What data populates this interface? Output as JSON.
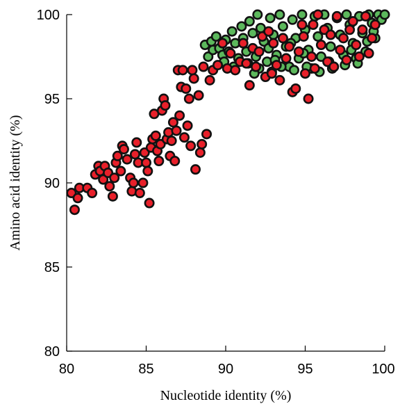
{
  "chart_data": {
    "type": "scatter",
    "title": "",
    "xlabel": "Nucleotide identity (%)",
    "ylabel": "Amino acid identity (%)",
    "xlim": [
      80,
      100
    ],
    "ylim": [
      80,
      100
    ],
    "x_ticks": [
      "80",
      "85",
      "90",
      "95",
      "100"
    ],
    "y_ticks": [
      "80",
      "85",
      "90",
      "95",
      "100"
    ],
    "grid": false,
    "legend": "none",
    "colors": {
      "green": "#5cb85c",
      "red": "#e8202a",
      "outline": "#111111"
    },
    "series": [
      {
        "color": "green",
        "points": [
          [
            88.7,
            98.2
          ],
          [
            88.9,
            97.5
          ],
          [
            89.1,
            98.4
          ],
          [
            89.2,
            97.9
          ],
          [
            89.4,
            98.7
          ],
          [
            89.6,
            98.0
          ],
          [
            89.8,
            97.6
          ],
          [
            90.0,
            98.5
          ],
          [
            90.2,
            97.8
          ],
          [
            90.4,
            99.0
          ],
          [
            90.6,
            98.3
          ],
          [
            90.8,
            97.4
          ],
          [
            91.0,
            99.3
          ],
          [
            91.1,
            98.6
          ],
          [
            91.3,
            97.8
          ],
          [
            91.5,
            99.6
          ],
          [
            91.7,
            98.9
          ],
          [
            91.9,
            97.5
          ],
          [
            92.0,
            100.0
          ],
          [
            92.2,
            99.2
          ],
          [
            92.4,
            98.4
          ],
          [
            92.6,
            97.2
          ],
          [
            92.8,
            99.8
          ],
          [
            93.0,
            98.8
          ],
          [
            93.2,
            97.6
          ],
          [
            93.4,
            100.0
          ],
          [
            93.6,
            99.3
          ],
          [
            93.8,
            98.1
          ],
          [
            94.0,
            96.9
          ],
          [
            94.2,
            99.7
          ],
          [
            94.4,
            98.6
          ],
          [
            94.6,
            97.4
          ],
          [
            94.8,
            100.0
          ],
          [
            95.0,
            99.1
          ],
          [
            95.2,
            97.9
          ],
          [
            95.4,
            96.8
          ],
          [
            95.6,
            99.9
          ],
          [
            95.8,
            98.7
          ],
          [
            96.0,
            97.5
          ],
          [
            96.2,
            100.0
          ],
          [
            96.4,
            99.2
          ],
          [
            96.6,
            98.1
          ],
          [
            96.8,
            96.9
          ],
          [
            97.0,
            99.8
          ],
          [
            97.2,
            98.8
          ],
          [
            97.4,
            97.6
          ],
          [
            97.6,
            100.0
          ],
          [
            97.8,
            99.4
          ],
          [
            98.0,
            98.3
          ],
          [
            98.2,
            97.4
          ],
          [
            98.4,
            99.9
          ],
          [
            98.6,
            98.9
          ],
          [
            98.8,
            97.8
          ],
          [
            99.0,
            100.0
          ],
          [
            99.2,
            99.5
          ],
          [
            99.4,
            98.6
          ],
          [
            99.6,
            100.0
          ],
          [
            99.8,
            99.7
          ],
          [
            100.0,
            100.0
          ],
          [
            91.4,
            97.1
          ],
          [
            92.1,
            96.8
          ],
          [
            92.9,
            96.6
          ],
          [
            93.5,
            96.9
          ],
          [
            94.3,
            96.7
          ],
          [
            95.1,
            96.9
          ],
          [
            95.9,
            96.6
          ],
          [
            96.7,
            96.8
          ],
          [
            97.5,
            97.0
          ],
          [
            98.3,
            97.1
          ],
          [
            90.5,
            96.9
          ],
          [
            89.9,
            97.2
          ],
          [
            91.8,
            96.5
          ],
          [
            93.1,
            97.3
          ],
          [
            94.9,
            97.7
          ],
          [
            96.5,
            97.2
          ],
          [
            97.9,
            97.9
          ],
          [
            98.9,
            98.4
          ],
          [
            99.3,
            99.0
          ],
          [
            92.7,
            98.0
          ],
          [
            94.1,
            98.3
          ]
        ]
      },
      {
        "color": "red",
        "points": [
          [
            80.3,
            89.4
          ],
          [
            80.5,
            88.4
          ],
          [
            80.7,
            89.1
          ],
          [
            80.8,
            89.7
          ],
          [
            81.3,
            89.7
          ],
          [
            81.6,
            89.4
          ],
          [
            81.8,
            90.5
          ],
          [
            82.0,
            91.0
          ],
          [
            82.1,
            90.7
          ],
          [
            82.3,
            90.2
          ],
          [
            82.4,
            91.0
          ],
          [
            82.6,
            90.6
          ],
          [
            82.7,
            89.8
          ],
          [
            82.9,
            89.2
          ],
          [
            83.0,
            90.3
          ],
          [
            83.1,
            91.2
          ],
          [
            83.2,
            91.6
          ],
          [
            83.4,
            90.7
          ],
          [
            83.5,
            92.2
          ],
          [
            83.6,
            92.0
          ],
          [
            83.8,
            91.4
          ],
          [
            84.0,
            90.3
          ],
          [
            84.1,
            89.5
          ],
          [
            84.2,
            90.0
          ],
          [
            84.3,
            91.7
          ],
          [
            84.4,
            92.4
          ],
          [
            84.5,
            91.2
          ],
          [
            84.6,
            89.4
          ],
          [
            84.8,
            90.0
          ],
          [
            84.9,
            91.8
          ],
          [
            85.0,
            91.2
          ],
          [
            85.1,
            90.7
          ],
          [
            85.2,
            88.8
          ],
          [
            85.3,
            92.1
          ],
          [
            85.4,
            92.6
          ],
          [
            85.5,
            94.1
          ],
          [
            85.6,
            92.8
          ],
          [
            85.7,
            91.9
          ],
          [
            85.8,
            91.3
          ],
          [
            85.9,
            92.3
          ],
          [
            86.0,
            94.3
          ],
          [
            86.1,
            95.0
          ],
          [
            86.2,
            94.6
          ],
          [
            86.3,
            92.6
          ],
          [
            86.4,
            93.0
          ],
          [
            86.5,
            91.6
          ],
          [
            86.6,
            92.5
          ],
          [
            86.7,
            93.6
          ],
          [
            86.8,
            91.3
          ],
          [
            86.9,
            93.1
          ],
          [
            87.0,
            96.7
          ],
          [
            87.1,
            94.0
          ],
          [
            87.2,
            95.7
          ],
          [
            87.3,
            96.7
          ],
          [
            87.4,
            92.7
          ],
          [
            87.5,
            95.6
          ],
          [
            87.6,
            93.4
          ],
          [
            87.7,
            95.0
          ],
          [
            87.8,
            92.2
          ],
          [
            87.9,
            96.7
          ],
          [
            88.0,
            96.2
          ],
          [
            88.1,
            90.8
          ],
          [
            88.3,
            95.2
          ],
          [
            88.4,
            91.8
          ],
          [
            88.5,
            92.3
          ],
          [
            88.6,
            96.9
          ],
          [
            88.8,
            92.9
          ],
          [
            89.0,
            96.1
          ],
          [
            89.2,
            96.7
          ],
          [
            89.5,
            97.0
          ],
          [
            89.8,
            98.3
          ],
          [
            90.1,
            96.8
          ],
          [
            90.3,
            97.7
          ],
          [
            90.6,
            96.7
          ],
          [
            90.9,
            97.2
          ],
          [
            91.1,
            98.3
          ],
          [
            91.3,
            97.1
          ],
          [
            91.5,
            95.8
          ],
          [
            91.7,
            98.0
          ],
          [
            91.9,
            96.9
          ],
          [
            92.1,
            97.8
          ],
          [
            92.3,
            98.7
          ],
          [
            92.5,
            96.3
          ],
          [
            92.7,
            99.0
          ],
          [
            92.9,
            96.5
          ],
          [
            93.0,
            98.3
          ],
          [
            93.2,
            97.0
          ],
          [
            93.4,
            96.1
          ],
          [
            93.6,
            98.6
          ],
          [
            93.8,
            97.4
          ],
          [
            94.0,
            98.1
          ],
          [
            94.2,
            95.4
          ],
          [
            94.4,
            95.6
          ],
          [
            94.6,
            97.8
          ],
          [
            94.8,
            99.4
          ],
          [
            95.0,
            96.5
          ],
          [
            95.2,
            95.0
          ],
          [
            95.4,
            97.5
          ],
          [
            95.6,
            96.8
          ],
          [
            95.8,
            100.0
          ],
          [
            96.0,
            98.2
          ],
          [
            96.2,
            99.1
          ],
          [
            96.4,
            97.2
          ],
          [
            96.6,
            98.8
          ],
          [
            96.8,
            96.9
          ],
          [
            97.0,
            99.9
          ],
          [
            97.2,
            97.9
          ],
          [
            97.4,
            98.6
          ],
          [
            97.6,
            97.3
          ],
          [
            97.8,
            99.1
          ],
          [
            98.0,
            99.6
          ],
          [
            98.2,
            98.2
          ],
          [
            98.4,
            97.5
          ],
          [
            98.6,
            99.1
          ],
          [
            98.8,
            99.9
          ],
          [
            99.0,
            97.7
          ],
          [
            99.2,
            98.6
          ],
          [
            99.4,
            99.4
          ],
          [
            95.5,
            99.4
          ],
          [
            94.9,
            98.7
          ]
        ]
      }
    ]
  }
}
